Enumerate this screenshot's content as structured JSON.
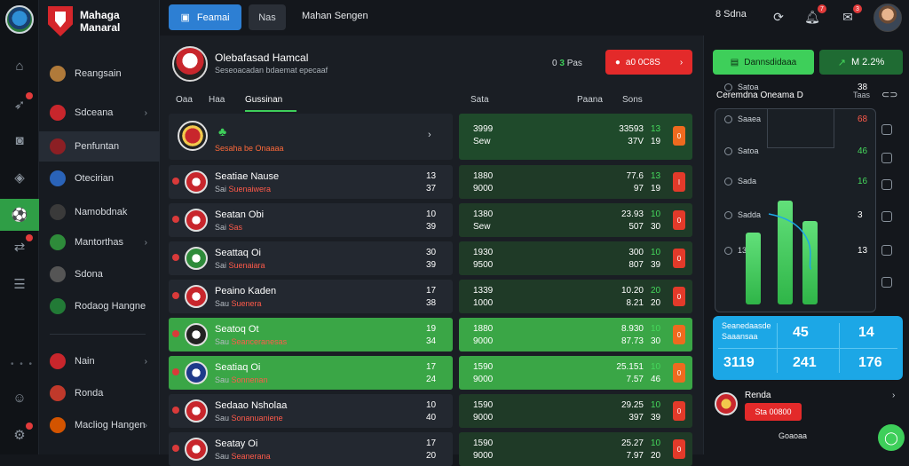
{
  "app": {
    "brand_line1": "Mahaga",
    "brand_line2": "Manaral"
  },
  "topbar": {
    "primary_label": "Feamai",
    "ghost_label": "Nas",
    "title": "Mahan Sengen",
    "points_label": "8 Sdna",
    "notif_count": "7",
    "msg_count": "3"
  },
  "sidebar": {
    "items": [
      {
        "label": "Reangsain",
        "color": "#b07a3a"
      },
      {
        "label": "Sdceana",
        "color": "#c8262c",
        "chev": "›"
      },
      {
        "label": "Penfuntan",
        "color": "#8c1f24"
      },
      {
        "label": "Otecirian",
        "color": "#2a63b8"
      },
      {
        "label": "Namobdnak",
        "color": "#3a3a3a"
      },
      {
        "label": "Mantorthas",
        "color": "#2e8b3a",
        "chev": "›"
      },
      {
        "label": "Sdona",
        "color": "#555555"
      },
      {
        "label": "Rodaog Hangne",
        "color": "#227a36"
      },
      {
        "label": "Nain",
        "color": "#c8262c",
        "chev": "›"
      },
      {
        "label": "Ronda",
        "color": "#c0392b"
      },
      {
        "label": "Macliog Hangen",
        "color": "#d35400",
        "chev": "›"
      }
    ]
  },
  "match": {
    "title": "Olebafasad Hamcal",
    "subtitle": "Seseoacadan bdaemat epecaaf",
    "score_prefix": "0",
    "score_value": "3",
    "score_suffix": "Pas",
    "live_label": "a0 0C8S",
    "live_chev": "›"
  },
  "tabs": {
    "items": [
      "Oaa",
      "Haa",
      "Gussinan"
    ],
    "col_right_1": "Sata",
    "col_right_2": "Paana",
    "col_right_3": "Sons"
  },
  "featured": {
    "team": "Sesaha be Onaaaa",
    "o1": "3999",
    "o2": "Sew",
    "s1": "33593",
    "s2": "37V",
    "g1": "13",
    "g2": "19",
    "act": "0"
  },
  "rows": [
    {
      "team": "Seatiae Nause",
      "meta": "Sai",
      "meta_r": "Suenaiwera",
      "pts1": "13",
      "pts2": "37",
      "o1": "1880",
      "o2": "9000",
      "s1": "77.6",
      "s2": "97",
      "g1": "13",
      "g2": "19",
      "act": "I"
    },
    {
      "team": "Seatan Obi",
      "meta": "Sai",
      "meta_r": "Sas",
      "pts1": "10",
      "pts2": "39",
      "o1": "1380",
      "o2": "Sew",
      "s1": "23.93",
      "s2": "507",
      "g1": "10",
      "g2": "30",
      "act": "0"
    },
    {
      "team": "Seattaq Oi",
      "meta": "Sai",
      "meta_r": "Suenaiara",
      "pts1": "30",
      "pts2": "39",
      "o1": "1930",
      "o2": "9500",
      "s1": "300",
      "s2": "807",
      "g1": "10",
      "g2": "39",
      "act": "0"
    },
    {
      "team": "Peaino Kaden",
      "meta": "Sau",
      "meta_r": "Suenera",
      "pts1": "17",
      "pts2": "38",
      "o1": "1339",
      "o2": "1000",
      "s1": "10.20",
      "s2": "8.21",
      "g1": "20",
      "g2": "20",
      "act": "0"
    },
    {
      "team": "Seatoq Ot",
      "meta": "Sau",
      "meta_r": "Seanceranesas",
      "pts1": "19",
      "pts2": "34",
      "o1": "1880",
      "o2": "9000",
      "s1": "8.930",
      "s2": "87.73",
      "g1": "10",
      "g2": "30",
      "act": "0",
      "highlight": true
    },
    {
      "team": "Seatiaq Oi",
      "meta": "Sau",
      "meta_r": "Sonnenan",
      "pts1": "17",
      "pts2": "24",
      "o1": "1590",
      "o2": "9000",
      "s1": "25.151",
      "s2": "7.57",
      "g1": "10",
      "g2": "46",
      "act": "0",
      "highlight": true
    },
    {
      "team": "Sedaao Nsholaa",
      "meta": "Sau",
      "meta_r": "Sonanuaniene",
      "pts1": "10",
      "pts2": "40",
      "o1": "1590",
      "o2": "9000",
      "s1": "29.25",
      "s2": "397",
      "g1": "10",
      "g2": "39",
      "act": "0"
    },
    {
      "team": "Seatay Oi",
      "meta": "Sau",
      "meta_r": "Seanerana",
      "pts1": "17",
      "pts2": "20",
      "o1": "1590",
      "o2": "9000",
      "s1": "25.27",
      "s2": "7.97",
      "g1": "10",
      "g2": "20",
      "act": "0"
    }
  ],
  "right_panel": {
    "btn1_label": "Dannsdidaaa",
    "btn2_label": "M 2.2%",
    "title": "Ceremdna Oneama D",
    "title_right": "Taas",
    "pitch_rows": [
      {
        "label": "Satoa",
        "value": "38"
      },
      {
        "label": "Saaea",
        "value": "68",
        "tone": "r"
      },
      {
        "label": "Satoa",
        "value": "46",
        "tone": "g"
      },
      {
        "label": "Sada",
        "value": "16",
        "tone": "g"
      },
      {
        "label": "Sadda",
        "value": "3"
      },
      {
        "label": "13",
        "value": "13"
      }
    ],
    "bars": [
      0.62,
      0.9,
      0.72
    ],
    "stats_label1": "Seanedaasde",
    "stats_label2": "Saaansaa",
    "stats_v1": "45",
    "stats_v2": "14",
    "stats_v3": "3119",
    "stats_v4": "241",
    "stats_v5": "176",
    "fav_name": "Renda",
    "fav_btn": "Sta 00800",
    "footer": "Goaoaa"
  }
}
